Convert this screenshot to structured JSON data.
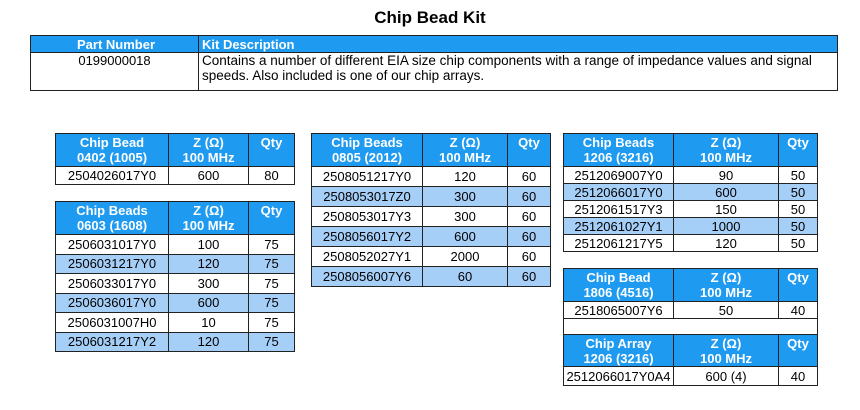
{
  "title": "Chip Bead Kit",
  "kit": {
    "headers": [
      "Part Number",
      "Kit Description"
    ],
    "part_number": "0199000018",
    "description": "Contains a number of different EIA size chip components with a range of impedance values and signal speeds. Also included is one of our chip arrays."
  },
  "colors": {
    "header": "#1e9af0",
    "alt_row": "#a6cff8"
  },
  "tables": [
    {
      "id": "t0402",
      "headers": [
        "Chip Bead\n0402 (1005)",
        "Z (Ω)\n100 MHz",
        "Qty"
      ],
      "rows": [
        [
          "2504026017Y0",
          "600",
          "80"
        ]
      ]
    },
    {
      "id": "t0603",
      "headers": [
        "Chip Beads\n0603 (1608)",
        "Z (Ω)\n100 MHz",
        "Qty"
      ],
      "rows": [
        [
          "2506031017Y0",
          "100",
          "75"
        ],
        [
          "2506031217Y0",
          "120",
          "75"
        ],
        [
          "2506033017Y0",
          "300",
          "75"
        ],
        [
          "2506036017Y0",
          "600",
          "75"
        ],
        [
          "2506031007H0",
          "10",
          "75"
        ],
        [
          "2506031217Y2",
          "120",
          "75"
        ]
      ]
    },
    {
      "id": "t0805",
      "headers": [
        "Chip Beads\n0805 (2012)",
        "Z (Ω)\n100 MHz",
        "Qty"
      ],
      "rows": [
        [
          "2508051217Y0",
          "120",
          "60"
        ],
        [
          "2508053017Z0",
          "300",
          "60"
        ],
        [
          "2508053017Y3",
          "300",
          "60"
        ],
        [
          "2508056017Y2",
          "600",
          "60"
        ],
        [
          "2508052027Y1",
          "2000",
          "60"
        ],
        [
          "2508056007Y6",
          "60",
          "60"
        ]
      ]
    },
    {
      "id": "t1206",
      "headers": [
        "Chip Beads\n1206 (3216)",
        "Z (Ω)\n100 MHz",
        "Qty"
      ],
      "rows": [
        [
          "2512069007Y0",
          "90",
          "50"
        ],
        [
          "2512066017Y0",
          "600",
          "50"
        ],
        [
          "2512061517Y3",
          "150",
          "50"
        ],
        [
          "2512061027Y1",
          "1000",
          "50"
        ],
        [
          "2512061217Y5",
          "120",
          "50"
        ]
      ]
    },
    {
      "id": "t1806",
      "headers": [
        "Chip Bead\n1806 (4516)",
        "Z (Ω)\n100 MHz",
        "Qty"
      ],
      "rows": [
        [
          "2518065007Y6",
          "50",
          "40"
        ]
      ],
      "sub": {
        "headers": [
          "Chip Array\n1206 (3216)",
          "Z (Ω)\n100 MHz",
          "Qty"
        ],
        "rows": [
          [
            "2512066017Y0A4",
            "600 (4)",
            "40"
          ]
        ]
      }
    }
  ]
}
